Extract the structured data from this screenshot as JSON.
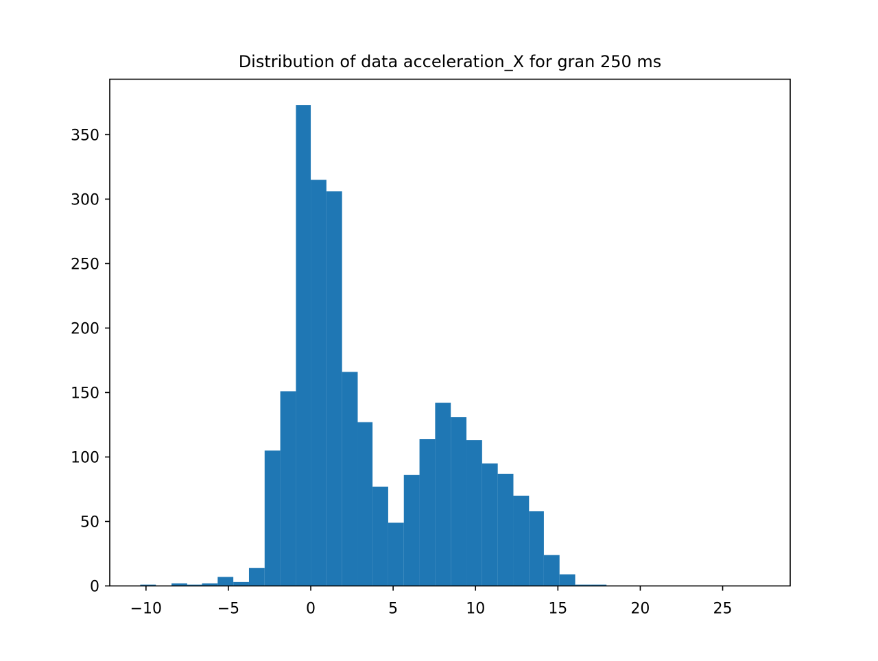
{
  "chart_data": {
    "type": "bar",
    "title": "Distribution of data acceleration_X for gran 250 ms",
    "xlabel": "",
    "ylabel": "",
    "xlim": [
      -12.2,
      29.1
    ],
    "ylim": [
      0,
      393
    ],
    "grid": false,
    "bar_color": "#1f77b4",
    "x_ticks": [
      -10,
      -5,
      0,
      5,
      10,
      15,
      20,
      25
    ],
    "x_tick_labels": [
      "−10",
      "−5",
      "0",
      "5",
      "10",
      "15",
      "20",
      "25"
    ],
    "y_ticks": [
      0,
      50,
      100,
      150,
      200,
      250,
      300,
      350
    ],
    "y_tick_labels": [
      "0",
      "50",
      "100",
      "150",
      "200",
      "250",
      "300",
      "350"
    ],
    "bins": [
      {
        "x0": -10.35,
        "x1": -9.4,
        "value": 1
      },
      {
        "x0": -9.4,
        "x1": -8.45,
        "value": 0
      },
      {
        "x0": -8.45,
        "x1": -7.5,
        "value": 2
      },
      {
        "x0": -7.5,
        "x1": -6.6,
        "value": 1
      },
      {
        "x0": -6.6,
        "x1": -5.65,
        "value": 2
      },
      {
        "x0": -5.65,
        "x1": -4.7,
        "value": 7
      },
      {
        "x0": -4.7,
        "x1": -3.75,
        "value": 3
      },
      {
        "x0": -3.75,
        "x1": -2.8,
        "value": 14
      },
      {
        "x0": -2.8,
        "x1": -1.85,
        "value": 105
      },
      {
        "x0": -1.85,
        "x1": -0.9,
        "value": 151
      },
      {
        "x0": -0.9,
        "x1": 0.0,
        "value": 373
      },
      {
        "x0": 0.0,
        "x1": 0.95,
        "value": 315
      },
      {
        "x0": 0.95,
        "x1": 1.9,
        "value": 306
      },
      {
        "x0": 1.9,
        "x1": 2.85,
        "value": 166
      },
      {
        "x0": 2.85,
        "x1": 3.75,
        "value": 127
      },
      {
        "x0": 3.75,
        "x1": 4.7,
        "value": 77
      },
      {
        "x0": 4.7,
        "x1": 5.65,
        "value": 49
      },
      {
        "x0": 5.65,
        "x1": 6.6,
        "value": 86
      },
      {
        "x0": 6.6,
        "x1": 7.55,
        "value": 114
      },
      {
        "x0": 7.55,
        "x1": 8.5,
        "value": 142
      },
      {
        "x0": 8.5,
        "x1": 9.45,
        "value": 131
      },
      {
        "x0": 9.45,
        "x1": 10.4,
        "value": 113
      },
      {
        "x0": 10.4,
        "x1": 11.35,
        "value": 95
      },
      {
        "x0": 11.35,
        "x1": 12.3,
        "value": 87
      },
      {
        "x0": 12.3,
        "x1": 13.25,
        "value": 70
      },
      {
        "x0": 13.25,
        "x1": 14.15,
        "value": 58
      },
      {
        "x0": 14.15,
        "x1": 15.1,
        "value": 24
      },
      {
        "x0": 15.1,
        "x1": 16.05,
        "value": 9
      },
      {
        "x0": 16.05,
        "x1": 17.0,
        "value": 1
      },
      {
        "x0": 17.0,
        "x1": 17.95,
        "value": 1
      },
      {
        "x0": 17.95,
        "x1": 18.9,
        "value": 0
      },
      {
        "x0": 18.9,
        "x1": 19.85,
        "value": 0
      },
      {
        "x0": 19.85,
        "x1": 20.8,
        "value": 0
      },
      {
        "x0": 20.8,
        "x1": 21.75,
        "value": 0
      },
      {
        "x0": 21.75,
        "x1": 22.7,
        "value": 0
      },
      {
        "x0": 22.7,
        "x1": 23.65,
        "value": 0
      },
      {
        "x0": 23.65,
        "x1": 24.6,
        "value": 0
      },
      {
        "x0": 24.6,
        "x1": 25.55,
        "value": 0
      },
      {
        "x0": 25.55,
        "x1": 26.5,
        "value": 0
      },
      {
        "x0": 26.5,
        "x1": 27.45,
        "value": 0
      }
    ]
  }
}
